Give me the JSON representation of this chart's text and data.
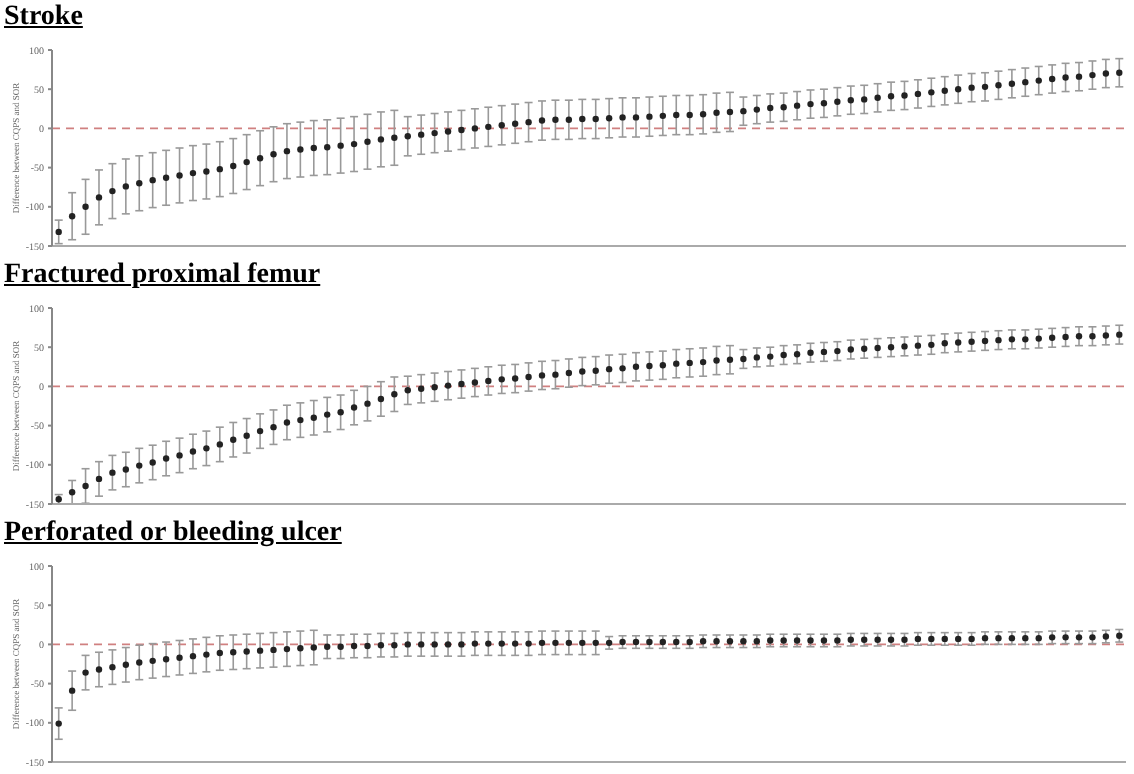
{
  "chart_data": [
    {
      "type": "scatter",
      "title": "Stroke",
      "ylabel": "Difference between CQPS and SOR",
      "ylim": [
        -150,
        100
      ],
      "yticks": [
        -150,
        -100,
        -50,
        0,
        50,
        100
      ],
      "tick_labels": "y",
      "marker": "circle",
      "ref_lines": [
        {
          "axis": "y",
          "value": 0,
          "color": "#d08080",
          "line_style": "dashed"
        }
      ],
      "categories": [
        null,
        null,
        null,
        null,
        null,
        null,
        null,
        null,
        null,
        null,
        null,
        null,
        null,
        null,
        null,
        null,
        null,
        null,
        null,
        null,
        null,
        null,
        null,
        null,
        null,
        null,
        null,
        null,
        null,
        null,
        null,
        null,
        null,
        null,
        null,
        null,
        null,
        null,
        null,
        null,
        null,
        null,
        null,
        null,
        null,
        null,
        null,
        null,
        null,
        null,
        null,
        null,
        null,
        null,
        null,
        null,
        null,
        null,
        null,
        null,
        null,
        null,
        null,
        null,
        null,
        null,
        null,
        null,
        null,
        null,
        null,
        null,
        null,
        null,
        null,
        null,
        null,
        null,
        null,
        null
      ],
      "series": [
        {
          "color": "#222222",
          "values": [
            -132,
            -112,
            -100,
            -88,
            -80,
            -74,
            -70,
            -66,
            -63,
            -60,
            -57,
            -55,
            -52,
            -48,
            -43,
            -38,
            -33,
            -29,
            -27,
            -25,
            -24,
            -22,
            -20,
            -17,
            -14,
            -12,
            -10,
            -8,
            -6,
            -4,
            -2,
            0,
            2,
            4,
            6,
            8,
            10,
            11,
            11,
            12,
            12,
            13,
            14,
            14,
            15,
            16,
            17,
            17,
            18,
            20,
            21,
            22,
            24,
            26,
            27,
            29,
            31,
            32,
            34,
            36,
            37,
            39,
            41,
            42,
            44,
            46,
            48,
            50,
            52,
            53,
            55,
            57,
            59,
            61,
            63,
            65,
            66,
            68,
            70,
            71
          ],
          "errors": [
            15,
            30,
            35,
            35,
            35,
            35,
            35,
            35,
            35,
            35,
            35,
            35,
            35,
            35,
            35,
            35,
            35,
            35,
            35,
            35,
            35,
            35,
            35,
            35,
            35,
            35,
            25,
            25,
            25,
            25,
            25,
            25,
            25,
            25,
            25,
            25,
            25,
            25,
            25,
            25,
            25,
            25,
            25,
            25,
            25,
            25,
            25,
            25,
            25,
            25,
            25,
            18,
            18,
            18,
            18,
            18,
            18,
            18,
            18,
            18,
            18,
            18,
            18,
            18,
            18,
            18,
            18,
            18,
            18,
            18,
            18,
            18,
            18,
            18,
            18,
            18,
            18,
            18,
            18,
            18
          ]
        }
      ]
    },
    {
      "type": "scatter",
      "title": "Fractured proximal femur",
      "ylabel": "Difference between CQPS and SOR",
      "ylim": [
        -150,
        100
      ],
      "yticks": [
        -150,
        -100,
        -50,
        0,
        50,
        100
      ],
      "tick_labels": "y",
      "marker": "circle",
      "ref_lines": [
        {
          "axis": "y",
          "value": 0,
          "color": "#d08080",
          "line_style": "dashed"
        }
      ],
      "categories": [
        null,
        null,
        null,
        null,
        null,
        null,
        null,
        null,
        null,
        null,
        null,
        null,
        null,
        null,
        null,
        null,
        null,
        null,
        null,
        null,
        null,
        null,
        null,
        null,
        null,
        null,
        null,
        null,
        null,
        null,
        null,
        null,
        null,
        null,
        null,
        null,
        null,
        null,
        null,
        null,
        null,
        null,
        null,
        null,
        null,
        null,
        null,
        null,
        null,
        null,
        null,
        null,
        null,
        null,
        null,
        null,
        null,
        null,
        null,
        null,
        null,
        null,
        null,
        null,
        null,
        null,
        null,
        null,
        null,
        null,
        null,
        null,
        null,
        null,
        null,
        null,
        null,
        null,
        null,
        null
      ],
      "series": [
        {
          "color": "#222222",
          "values": [
            -144,
            -135,
            -127,
            -118,
            -110,
            -106,
            -101,
            -97,
            -92,
            -88,
            -83,
            -79,
            -74,
            -68,
            -63,
            -57,
            -52,
            -46,
            -43,
            -40,
            -36,
            -33,
            -27,
            -22,
            -16,
            -10,
            -5,
            -3,
            -1,
            1,
            3,
            5,
            7,
            9,
            10,
            12,
            14,
            15,
            17,
            19,
            20,
            22,
            23,
            25,
            26,
            27,
            29,
            30,
            31,
            33,
            34,
            35,
            37,
            38,
            40,
            41,
            43,
            44,
            45,
            47,
            48,
            49,
            50,
            51,
            52,
            53,
            55,
            56,
            57,
            58,
            59,
            60,
            60,
            61,
            62,
            63,
            64,
            64,
            65,
            66
          ],
          "errors": [
            6,
            15,
            22,
            22,
            22,
            22,
            22,
            22,
            22,
            22,
            22,
            22,
            22,
            22,
            22,
            22,
            22,
            22,
            22,
            22,
            22,
            22,
            22,
            22,
            22,
            22,
            18,
            18,
            18,
            18,
            18,
            18,
            18,
            18,
            18,
            18,
            18,
            18,
            18,
            18,
            18,
            18,
            18,
            18,
            18,
            18,
            18,
            18,
            18,
            18,
            18,
            12,
            12,
            12,
            12,
            12,
            12,
            12,
            12,
            12,
            12,
            12,
            12,
            12,
            12,
            12,
            12,
            12,
            12,
            12,
            12,
            12,
            12,
            12,
            12,
            12,
            12,
            12,
            12,
            12
          ]
        }
      ]
    },
    {
      "type": "scatter",
      "title": "Perforated or bleeding ulcer",
      "ylabel": "Difference between CQPS and SOR",
      "ylim": [
        -150,
        100
      ],
      "yticks": [
        -150,
        -100,
        -50,
        0,
        50,
        100
      ],
      "tick_labels": "y",
      "marker": "circle",
      "ref_lines": [
        {
          "axis": "y",
          "value": 0,
          "color": "#d08080",
          "line_style": "dashed"
        }
      ],
      "categories": [
        null,
        null,
        null,
        null,
        null,
        null,
        null,
        null,
        null,
        null,
        null,
        null,
        null,
        null,
        null,
        null,
        null,
        null,
        null,
        null,
        null,
        null,
        null,
        null,
        null,
        null,
        null,
        null,
        null,
        null,
        null,
        null,
        null,
        null,
        null,
        null,
        null,
        null,
        null,
        null,
        null,
        null,
        null,
        null,
        null,
        null,
        null,
        null,
        null,
        null,
        null,
        null,
        null,
        null,
        null,
        null,
        null,
        null,
        null,
        null,
        null,
        null,
        null,
        null,
        null,
        null,
        null,
        null,
        null,
        null,
        null,
        null,
        null,
        null,
        null,
        null,
        null,
        null,
        null,
        null
      ],
      "series": [
        {
          "color": "#222222",
          "values": [
            -101,
            -59,
            -36,
            -32,
            -29,
            -26,
            -23,
            -21,
            -19,
            -17,
            -15,
            -13,
            -11,
            -10,
            -9,
            -8,
            -7,
            -6,
            -5,
            -4,
            -3,
            -3,
            -2,
            -2,
            -1,
            -1,
            0,
            0,
            0,
            0,
            0,
            1,
            1,
            1,
            1,
            1,
            2,
            2,
            2,
            2,
            2,
            2,
            3,
            3,
            3,
            3,
            3,
            3,
            4,
            4,
            4,
            4,
            4,
            5,
            5,
            5,
            5,
            5,
            5,
            6,
            6,
            6,
            6,
            6,
            7,
            7,
            7,
            7,
            7,
            8,
            8,
            8,
            8,
            8,
            9,
            9,
            9,
            9,
            10,
            11
          ],
          "errors": [
            20,
            25,
            22,
            22,
            22,
            22,
            22,
            22,
            22,
            22,
            22,
            22,
            22,
            22,
            22,
            22,
            22,
            22,
            22,
            22,
            15,
            15,
            15,
            15,
            15,
            15,
            15,
            15,
            15,
            15,
            15,
            15,
            15,
            15,
            15,
            15,
            15,
            15,
            15,
            15,
            15,
            8,
            8,
            8,
            8,
            8,
            8,
            8,
            8,
            8,
            8,
            8,
            8,
            8,
            8,
            8,
            8,
            8,
            8,
            8,
            8,
            8,
            8,
            8,
            8,
            8,
            8,
            8,
            8,
            8,
            8,
            8,
            8,
            8,
            8,
            8,
            8,
            8,
            8,
            8
          ]
        }
      ]
    }
  ]
}
